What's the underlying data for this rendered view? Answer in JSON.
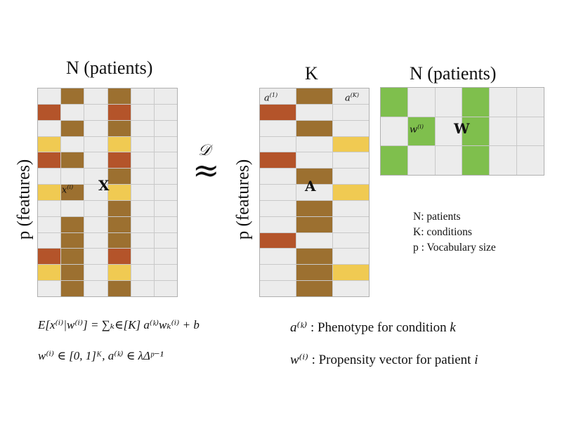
{
  "colors": {
    "empty": "#ececec",
    "brown": "#9c7030",
    "rust": "#b4542a",
    "yellow": "#f0ca52",
    "green": "#7fbf4d"
  },
  "titles": {
    "x_cols": "N (patients)",
    "a_cols": "K",
    "w_cols": "N (patients)",
    "x_rows": "p (features)",
    "a_rows": "p (features)"
  },
  "matrix_x": {
    "symbol": "X",
    "cell_label": "x",
    "cell_label_sup": "(i)",
    "rows": 13,
    "cols": 6,
    "col1": [
      "brown",
      "",
      "brown",
      "",
      "brown",
      "",
      "brown",
      "",
      "brown",
      "brown",
      "brown",
      "brown",
      "brown"
    ],
    "col3": [
      "brown",
      "rust",
      "brown",
      "yellow",
      "rust",
      "brown",
      "yellow",
      "brown",
      "brown",
      "brown",
      "rust",
      "yellow",
      "brown"
    ],
    "col0": [
      "",
      "rust",
      "",
      "yellow",
      "rust",
      "",
      "yellow",
      "",
      "",
      "",
      "rust",
      "yellow",
      ""
    ]
  },
  "matrix_a": {
    "symbol": "A",
    "first_col_label": "a",
    "first_col_sup": "(1)",
    "last_col_label": "a",
    "last_col_sup": "(K)",
    "rows": 13,
    "cols": 3,
    "col0": [
      "",
      "rust",
      "",
      "",
      "rust",
      "",
      "",
      "",
      "",
      "rust",
      "",
      "",
      ""
    ],
    "col1": [
      "brown",
      "",
      "brown",
      "",
      "",
      "brown",
      "",
      "brown",
      "brown",
      "",
      "brown",
      "brown",
      "brown"
    ],
    "col2": [
      "",
      "",
      "",
      "yellow",
      "",
      "",
      "yellow",
      "",
      "",
      "",
      "",
      "yellow",
      ""
    ]
  },
  "matrix_w": {
    "symbol": "W",
    "cell_label": "w",
    "cell_label_sup": "(i)",
    "rows": 3,
    "cols": 6,
    "filled": [
      [
        0,
        0
      ],
      [
        0,
        3
      ],
      [
        1,
        1
      ],
      [
        1,
        3
      ],
      [
        2,
        0
      ],
      [
        2,
        3
      ]
    ]
  },
  "approx": {
    "symbol": "≈",
    "over": "𝒟"
  },
  "legend": [
    "N: patients",
    "K: conditions",
    "p : Vocabulary size"
  ],
  "equations": {
    "eq1": "E[x⁽ⁱ⁾|w⁽ⁱ⁾] = ∑ₖ∈[K] a⁽ᵏ⁾wₖ⁽ⁱ⁾ + b",
    "eq2": "w⁽ⁱ⁾ ∈ [0, 1]ᴷ, a⁽ᵏ⁾ ∈ λΔᵖ⁻¹"
  },
  "descriptions": {
    "a_sym": "a⁽ᵏ⁾",
    "a_text": ": Phenotype for condition",
    "a_var": "k",
    "w_sym": "w⁽ⁱ⁾",
    "w_text": ": Propensity vector for patient",
    "w_var": "i"
  }
}
